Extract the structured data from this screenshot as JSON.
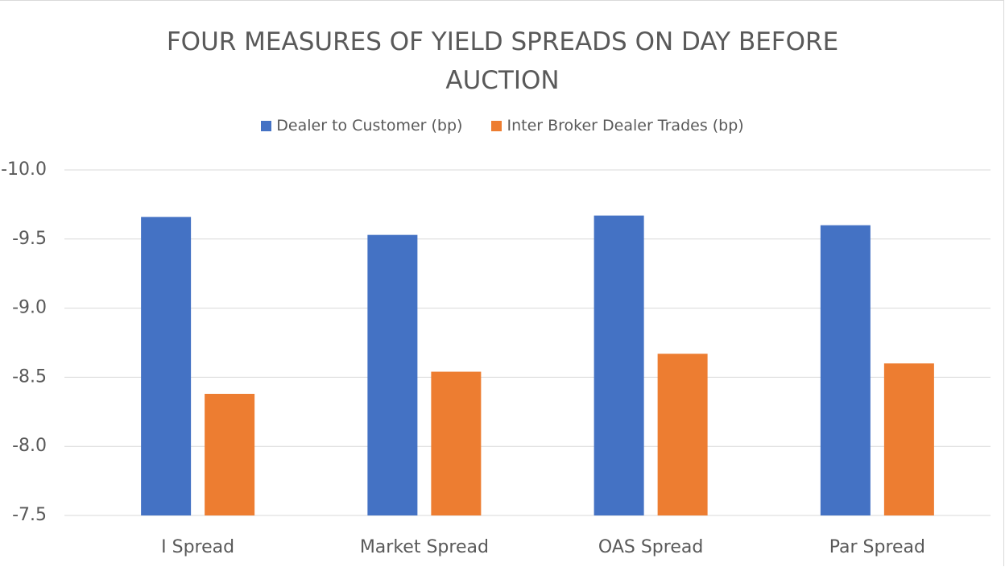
{
  "chart_data": {
    "type": "bar",
    "title": "FOUR MEASURES OF YIELD SPREADS ON DAY BEFORE AUCTION",
    "categories": [
      "I Spread",
      "Market Spread",
      "OAS Spread",
      "Par Spread"
    ],
    "series": [
      {
        "name": "Dealer to Customer (bp)",
        "color": "#4472c4",
        "values": [
          -9.66,
          -9.53,
          -9.67,
          -9.6
        ]
      },
      {
        "name": "Inter Broker Dealer Trades (bp)",
        "color": "#ed7d31",
        "values": [
          -8.38,
          -8.54,
          -8.67,
          -8.6
        ]
      }
    ],
    "ylim": [
      -7.5,
      -10
    ],
    "yticks": [
      {
        "value": -10,
        "label": "-10.0"
      },
      -9.5,
      {
        "value": -9,
        "label": "-9.0"
      },
      -8.5,
      {
        "value": -8,
        "label": "-8.0"
      },
      -7.5
    ],
    "grid": true,
    "legend": "top"
  }
}
